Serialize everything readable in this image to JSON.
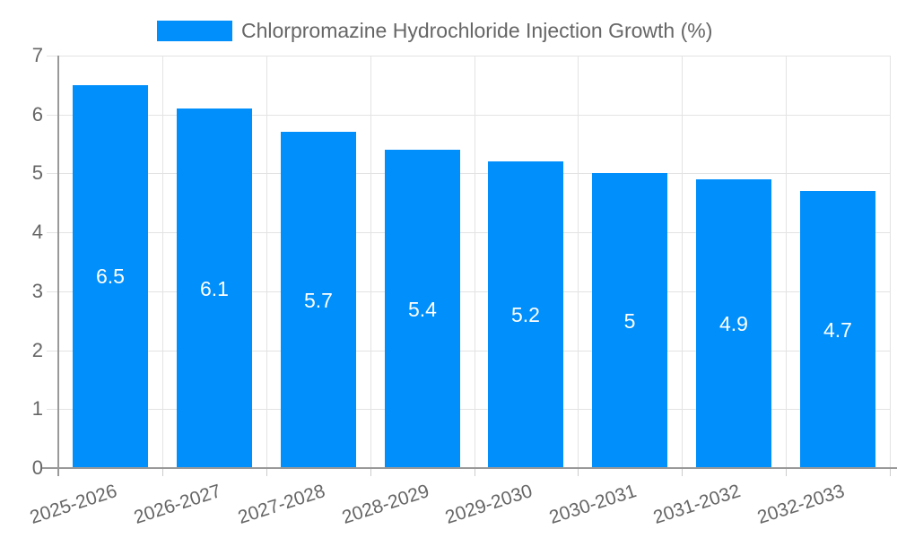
{
  "legend": {
    "label": "Chlorpromazine Hydrochloride Injection Growth (%)"
  },
  "colors": {
    "bar": "#008FFB",
    "grid": "#e3e3e3",
    "axis": "#999999",
    "tick_text": "#666666",
    "title_text": "#666666",
    "value_label": "#ffffff"
  },
  "chart_data": {
    "type": "bar",
    "title": "Chlorpromazine Hydrochloride Injection Growth (%)",
    "categories": [
      "2025-2026",
      "2026-2027",
      "2027-2028",
      "2028-2029",
      "2029-2030",
      "2030-2031",
      "2031-2032",
      "2032-2033"
    ],
    "values": [
      6.5,
      6.1,
      5.7,
      5.4,
      5.2,
      5,
      4.9,
      4.7
    ],
    "value_labels": [
      "6.5",
      "6.1",
      "5.7",
      "5.4",
      "5.2",
      "5",
      "4.9",
      "4.7"
    ],
    "xlabel": "",
    "ylabel": "",
    "ylim": [
      0,
      7
    ],
    "yticks": [
      0,
      1,
      2,
      3,
      4,
      5,
      6,
      7
    ],
    "grid": true,
    "legend_position": "top",
    "value_labels_inside_bars": true
  }
}
